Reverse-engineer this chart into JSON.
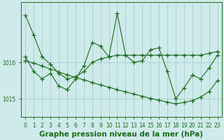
{
  "title": "Graphe pression niveau de la mer (hPa)",
  "bg_color": "#ceeaea",
  "grid_color": "#aacece",
  "line_color": "#1a6b1a",
  "hours": [
    0,
    1,
    2,
    3,
    4,
    5,
    6,
    7,
    8,
    9,
    10,
    11,
    12,
    13,
    14,
    15,
    16,
    17,
    18,
    19,
    20,
    21,
    22,
    23
  ],
  "line1_y": [
    1017.3,
    1016.75,
    1016.15,
    1015.95,
    1015.7,
    1015.55,
    1015.6,
    1015.75,
    1016.0,
    1016.1,
    1016.15,
    1016.2,
    1016.2,
    1016.2,
    1016.2,
    1016.2,
    1016.2,
    1016.2,
    1016.2,
    1016.2,
    1016.2,
    1016.2,
    1016.25,
    1016.3
  ],
  "line2_y": [
    1016.15,
    1015.75,
    1015.55,
    1015.7,
    1015.35,
    1015.25,
    1015.55,
    1015.9,
    1016.55,
    1016.45,
    1016.15,
    1017.35,
    1016.2,
    1016.0,
    1016.05,
    1016.35,
    1016.4,
    1015.75,
    1015.0,
    1015.3,
    1015.65,
    1015.55,
    1015.85,
    1016.2
  ],
  "line3_y": [
    1016.05,
    1015.98,
    1015.9,
    1015.82,
    1015.74,
    1015.66,
    1015.59,
    1015.52,
    1015.45,
    1015.38,
    1015.32,
    1015.25,
    1015.19,
    1015.13,
    1015.07,
    1015.01,
    1014.96,
    1014.91,
    1014.86,
    1014.9,
    1014.95,
    1015.05,
    1015.2,
    1015.5
  ],
  "ylim_min": 1014.7,
  "ylim_max": 1017.65,
  "yticks": [
    1015,
    1016
  ],
  "title_fontsize": 7.5,
  "tick_fontsize": 5.5
}
